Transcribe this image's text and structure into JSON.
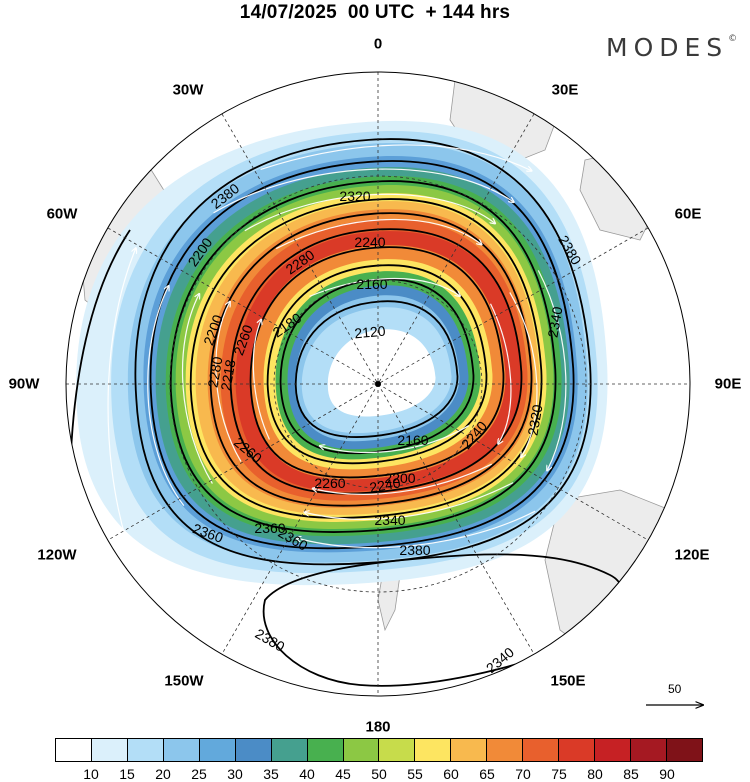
{
  "title": "14/07/2025  00 UTC  + 144 hrs",
  "brand": "MODES",
  "brand_mark": "©",
  "longitude_labels": [
    "0",
    "30E",
    "60E",
    "90E",
    "120E",
    "150E",
    "180",
    "150W",
    "120W",
    "90W",
    "60W",
    "30W"
  ],
  "vector_scale_label": "50",
  "contour_labels": [
    "2380",
    "2320",
    "2240",
    "2280",
    "2260",
    "2200",
    "2280",
    "2180",
    "2160",
    "2120",
    "2218",
    "2200",
    "2340",
    "2320",
    "2160",
    "2200",
    "2240",
    "2260",
    "2240",
    "2260",
    "2340",
    "2360",
    "2380",
    "2360",
    "2360",
    "2380",
    "2380",
    "2340"
  ],
  "colorbar": {
    "colors": [
      "#ffffff",
      "#dbf0fb",
      "#b3def7",
      "#8cc6ec",
      "#62a9dc",
      "#4b8cc6",
      "#45a08f",
      "#48b04f",
      "#8cc844",
      "#c7dc4b",
      "#fde561",
      "#f8b94e",
      "#f18a38",
      "#e8602d",
      "#da3a27",
      "#c62124",
      "#a51922",
      "#7f1218"
    ],
    "labels": [
      "10",
      "15",
      "20",
      "25",
      "30",
      "35",
      "40",
      "45",
      "50",
      "55",
      "60",
      "65",
      "70",
      "75",
      "80",
      "85",
      "90"
    ]
  }
}
